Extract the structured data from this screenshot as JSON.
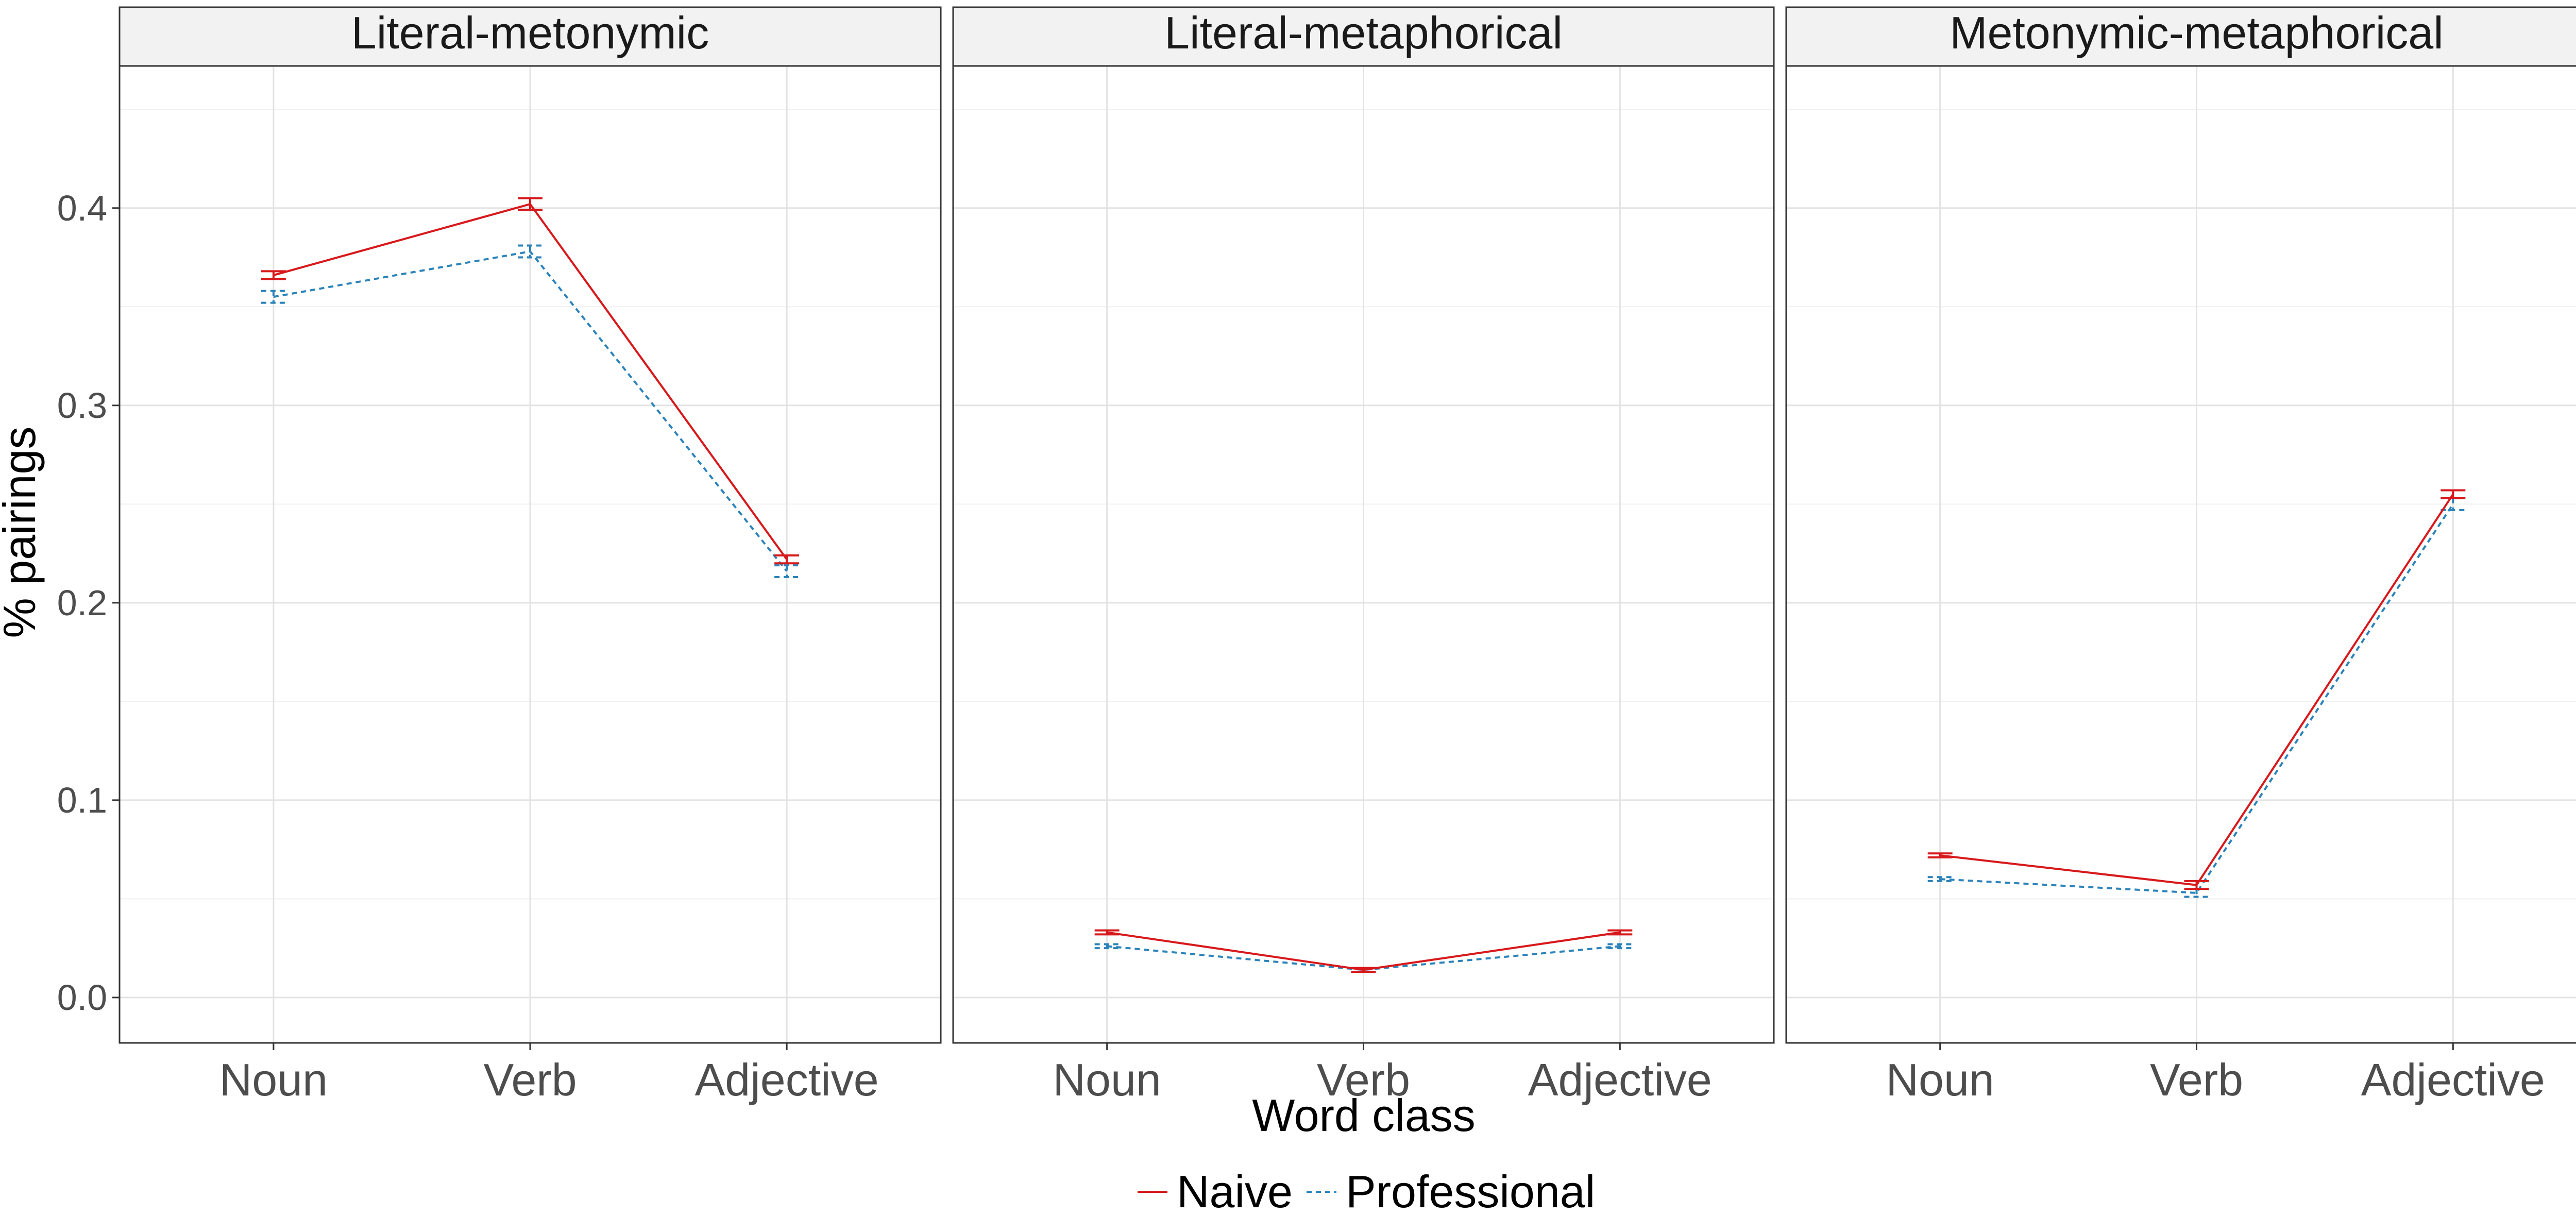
{
  "chart_data": {
    "type": "line",
    "xlabel": "Word class",
    "ylabel": "% pairings",
    "categories": [
      "Noun",
      "Verb",
      "Adjective"
    ],
    "ylim": [
      -0.023,
      0.472
    ],
    "yticks": [
      0.0,
      0.1,
      0.2,
      0.3,
      0.4
    ],
    "ytick_labels": [
      "0.0",
      "0.1",
      "0.2",
      "0.3",
      "0.4"
    ],
    "grid": true,
    "legend": {
      "position": "bottom",
      "entries": [
        "Naive",
        "Professional"
      ]
    },
    "series_styles": [
      {
        "name": "Naive",
        "color": "#d7191c",
        "dash": "solid"
      },
      {
        "name": "Professional",
        "color": "#2b83ba",
        "dash": "dotted"
      }
    ],
    "panels": [
      {
        "title": "Literal-metonymic",
        "series": [
          {
            "name": "Naive",
            "values": [
              0.366,
              0.402,
              0.222
            ],
            "err": [
              0.002,
              0.003,
              0.002
            ]
          },
          {
            "name": "Professional",
            "values": [
              0.355,
              0.378,
              0.216
            ],
            "err": [
              0.003,
              0.003,
              0.003
            ]
          }
        ]
      },
      {
        "title": "Literal-metaphorical",
        "series": [
          {
            "name": "Naive",
            "values": [
              0.033,
              0.014,
              0.033
            ],
            "err": [
              0.001,
              0.001,
              0.001
            ]
          },
          {
            "name": "Professional",
            "values": [
              0.026,
              0.014,
              0.026
            ],
            "err": [
              0.001,
              0.001,
              0.001
            ]
          }
        ]
      },
      {
        "title": "Metonymic-metaphorical",
        "series": [
          {
            "name": "Naive",
            "values": [
              0.072,
              0.057,
              0.255
            ],
            "err": [
              0.001,
              0.002,
              0.002
            ]
          },
          {
            "name": "Professional",
            "values": [
              0.06,
              0.053,
              0.25
            ],
            "err": [
              0.001,
              0.002,
              0.003
            ]
          }
        ]
      }
    ]
  }
}
